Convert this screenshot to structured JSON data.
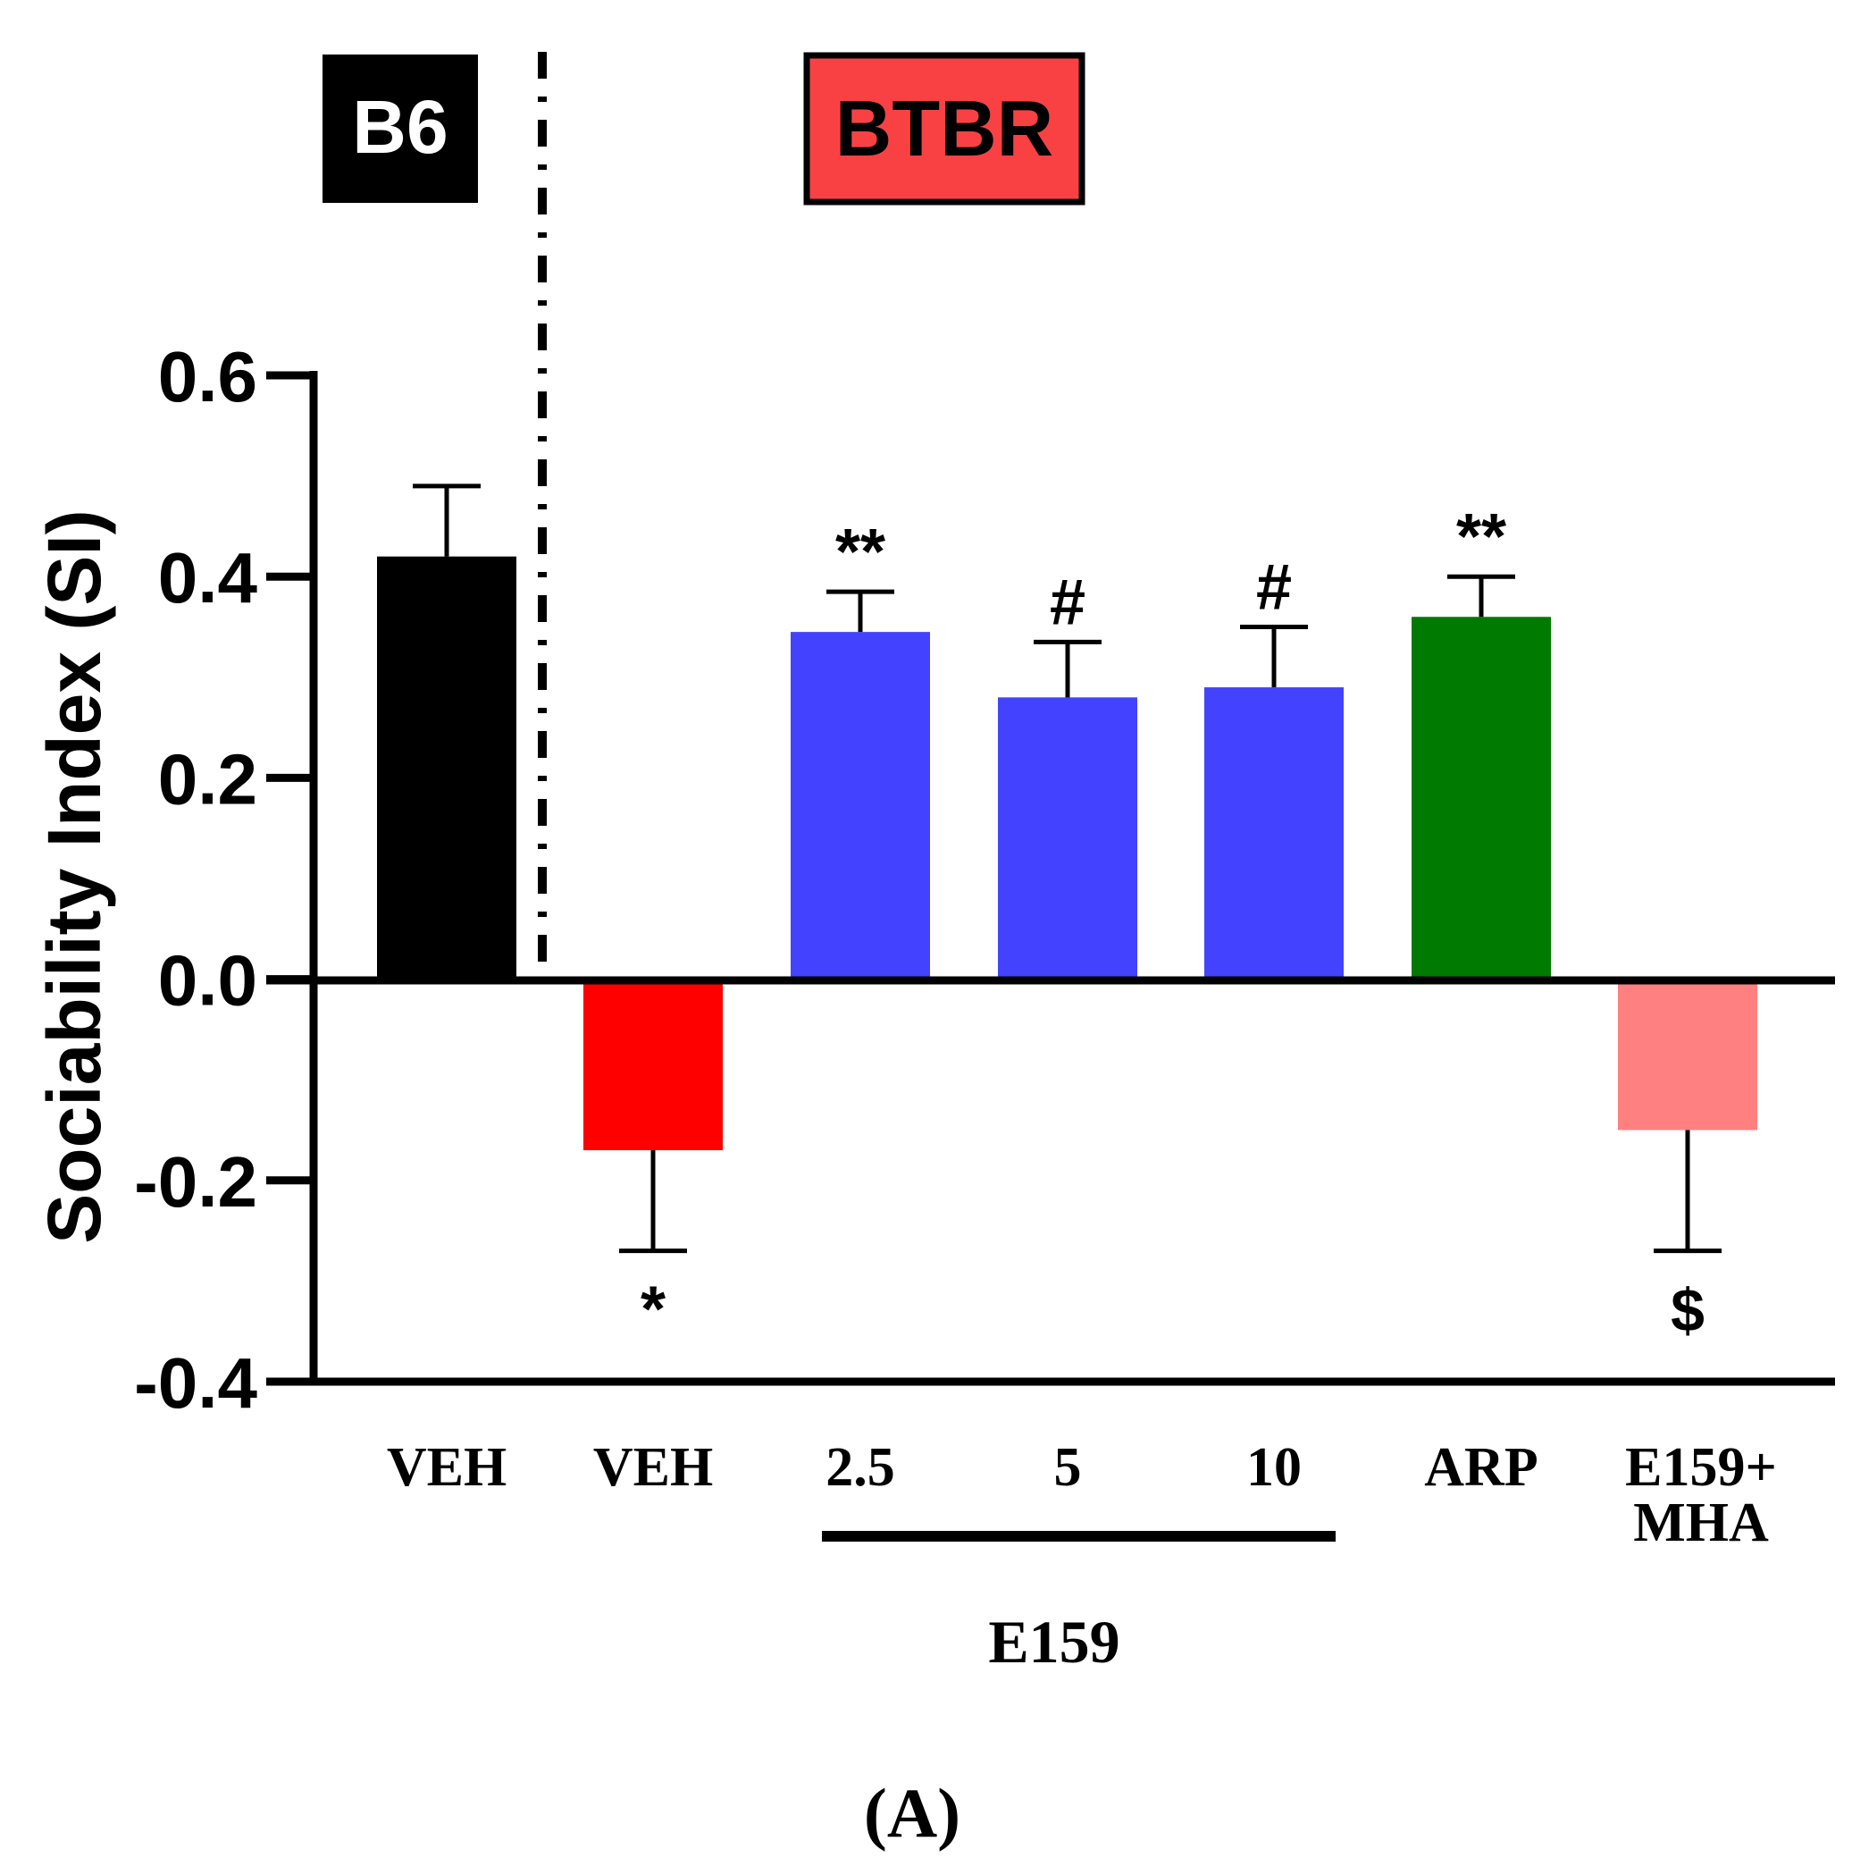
{
  "chart_data": {
    "type": "bar",
    "ylabel": "Sociability Index (SI)",
    "ylim": [
      -0.4,
      0.6
    ],
    "yticks": [
      0.6,
      0.4,
      0.2,
      0.0,
      -0.2,
      -0.4
    ],
    "ytick_labels": [
      "0.6",
      "0.4",
      "0.2",
      "0.0",
      "-0.2",
      "-0.4"
    ],
    "groups": [
      {
        "label": "B6",
        "color": "#000000",
        "text_color": "#ffffff"
      },
      {
        "label": "BTBR",
        "color": "#f94144",
        "text_color": "#000000"
      }
    ],
    "categories": [
      "VEH",
      "VEH",
      "2.5",
      "5",
      "10",
      "ARP",
      "E159+\nMHA"
    ],
    "values": [
      0.42,
      -0.17,
      0.345,
      0.28,
      0.29,
      0.36,
      -0.15
    ],
    "errors": [
      0.07,
      0.1,
      0.04,
      0.055,
      0.06,
      0.04,
      0.12
    ],
    "colors": [
      "#000000",
      "#ff0000",
      "#4343ff",
      "#4343ff",
      "#4343ff",
      "#007a00",
      "#ff8080"
    ],
    "annotations": [
      "",
      "*",
      "**",
      "#",
      "#",
      "**",
      "$"
    ],
    "bracket_label": "E159",
    "panel_label": "(A)"
  }
}
